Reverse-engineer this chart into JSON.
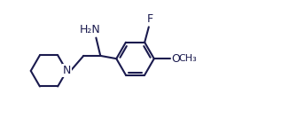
{
  "background_color": "#ffffff",
  "line_color": "#1a1a4e",
  "line_width": 1.5,
  "font_size": 9,
  "labels": {
    "NH2": "H₂N",
    "N": "N",
    "F": "F",
    "O": "O",
    "OMe": "O"
  }
}
